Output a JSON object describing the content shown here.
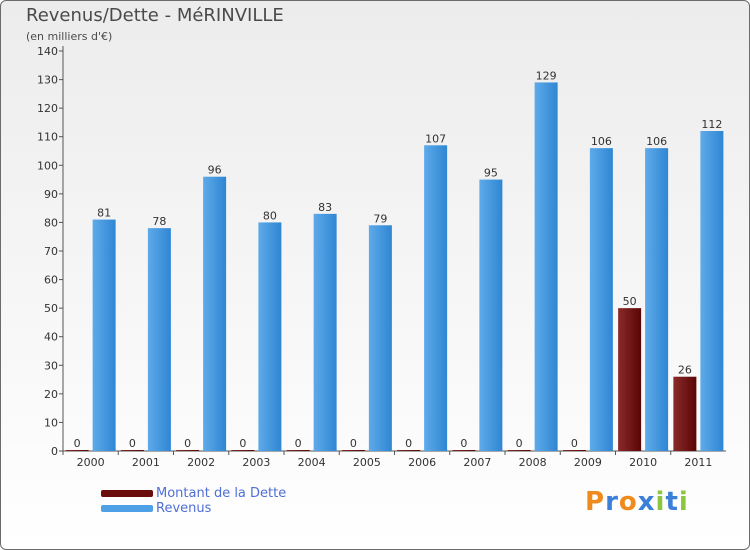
{
  "chart_data": {
    "type": "bar",
    "title": "Revenus/Dette - MéRINVILLE",
    "subtitle": "(en milliers d'€)",
    "categories": [
      "2000",
      "2001",
      "2002",
      "2003",
      "2004",
      "2005",
      "2006",
      "2007",
      "2008",
      "2009",
      "2010",
      "2011"
    ],
    "series": [
      {
        "name": "Montant de la Dette",
        "color": "#7a1515",
        "values": [
          0,
          0,
          0,
          0,
          0,
          0,
          0,
          0,
          0,
          0,
          50,
          26
        ]
      },
      {
        "name": "Revenus",
        "color": "#4ea1e6",
        "values": [
          81,
          78,
          96,
          80,
          83,
          79,
          107,
          95,
          129,
          106,
          106,
          112
        ]
      }
    ],
    "yticks": [
      0,
      10,
      20,
      30,
      40,
      50,
      60,
      70,
      80,
      90,
      100,
      110,
      120,
      130,
      140
    ],
    "ylim": [
      0,
      140
    ],
    "xlabel": "",
    "ylabel": "",
    "legend_position": "bottom-left",
    "grid": false
  },
  "logo": {
    "text": "Proxiti",
    "letters": [
      "P",
      "r",
      "o",
      "x",
      "i",
      "t",
      "i"
    ],
    "colors": [
      "#f08a1c",
      "#3b7fd9",
      "#f08a1c",
      "#3b7fd9",
      "#8cc63f",
      "#3b7fd9",
      "#8cc63f"
    ]
  }
}
